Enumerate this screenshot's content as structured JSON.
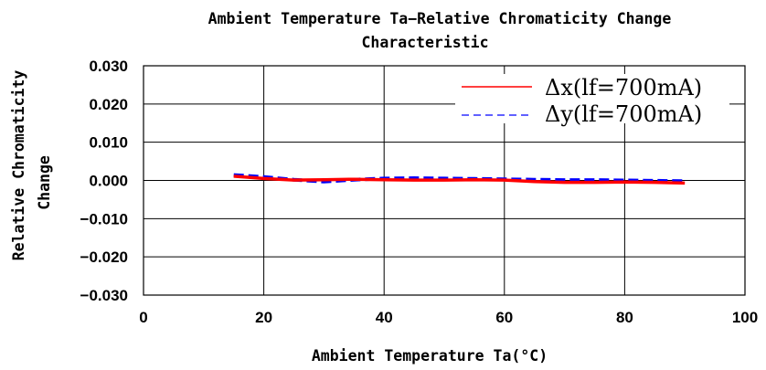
{
  "chart_data": {
    "type": "line",
    "title": "Ambient Temperature Ta−Relative Chromaticity Change",
    "title_line2": "Characteristic",
    "xlabel": "Ambient Temperature Ta(°C)",
    "ylabel_line1": "Relative Chromaticity",
    "ylabel_line2": "Change",
    "xlim": [
      0,
      100
    ],
    "ylim": [
      -0.03,
      0.03
    ],
    "x_ticks": [
      0,
      20,
      40,
      60,
      80,
      100
    ],
    "x_tick_labels": [
      "0",
      "20",
      "40",
      "60",
      "80",
      "100"
    ],
    "y_ticks": [
      0.03,
      0.02,
      0.01,
      0.0,
      -0.01,
      -0.02,
      -0.03
    ],
    "y_tick_labels": [
      "0.030",
      "0.020",
      "0.010",
      "0.000",
      "−0.010",
      "−0.020",
      "−0.030"
    ],
    "grid": true,
    "legend_position": "top-right",
    "series": [
      {
        "name": "Δx(lf=700mA)",
        "color": "#ff0000",
        "dash": "solid",
        "x": [
          15,
          20,
          25,
          30,
          35,
          40,
          45,
          50,
          55,
          60,
          65,
          70,
          75,
          80,
          85,
          90
        ],
        "y": [
          0.0011,
          0.0005,
          0.0001,
          0.0002,
          0.0003,
          0.0002,
          0.0001,
          0.0001,
          0.0002,
          0.0001,
          -0.0003,
          -0.0005,
          -0.0005,
          -0.0004,
          -0.0005,
          -0.0007
        ]
      },
      {
        "name": "Δy(lf=700mA)",
        "color": "#0000ff",
        "dash": "dashed",
        "x": [
          15,
          20,
          25,
          30,
          35,
          40,
          45,
          50,
          55,
          60,
          65,
          70,
          75,
          80,
          85,
          90
        ],
        "y": [
          0.0014,
          0.0009,
          0.0002,
          -0.0003,
          0.0002,
          0.0005,
          0.0006,
          0.0005,
          0.0004,
          0.0003,
          0.0002,
          0.0001,
          0.0001,
          0.0,
          -0.0001,
          -0.0002
        ]
      }
    ]
  }
}
